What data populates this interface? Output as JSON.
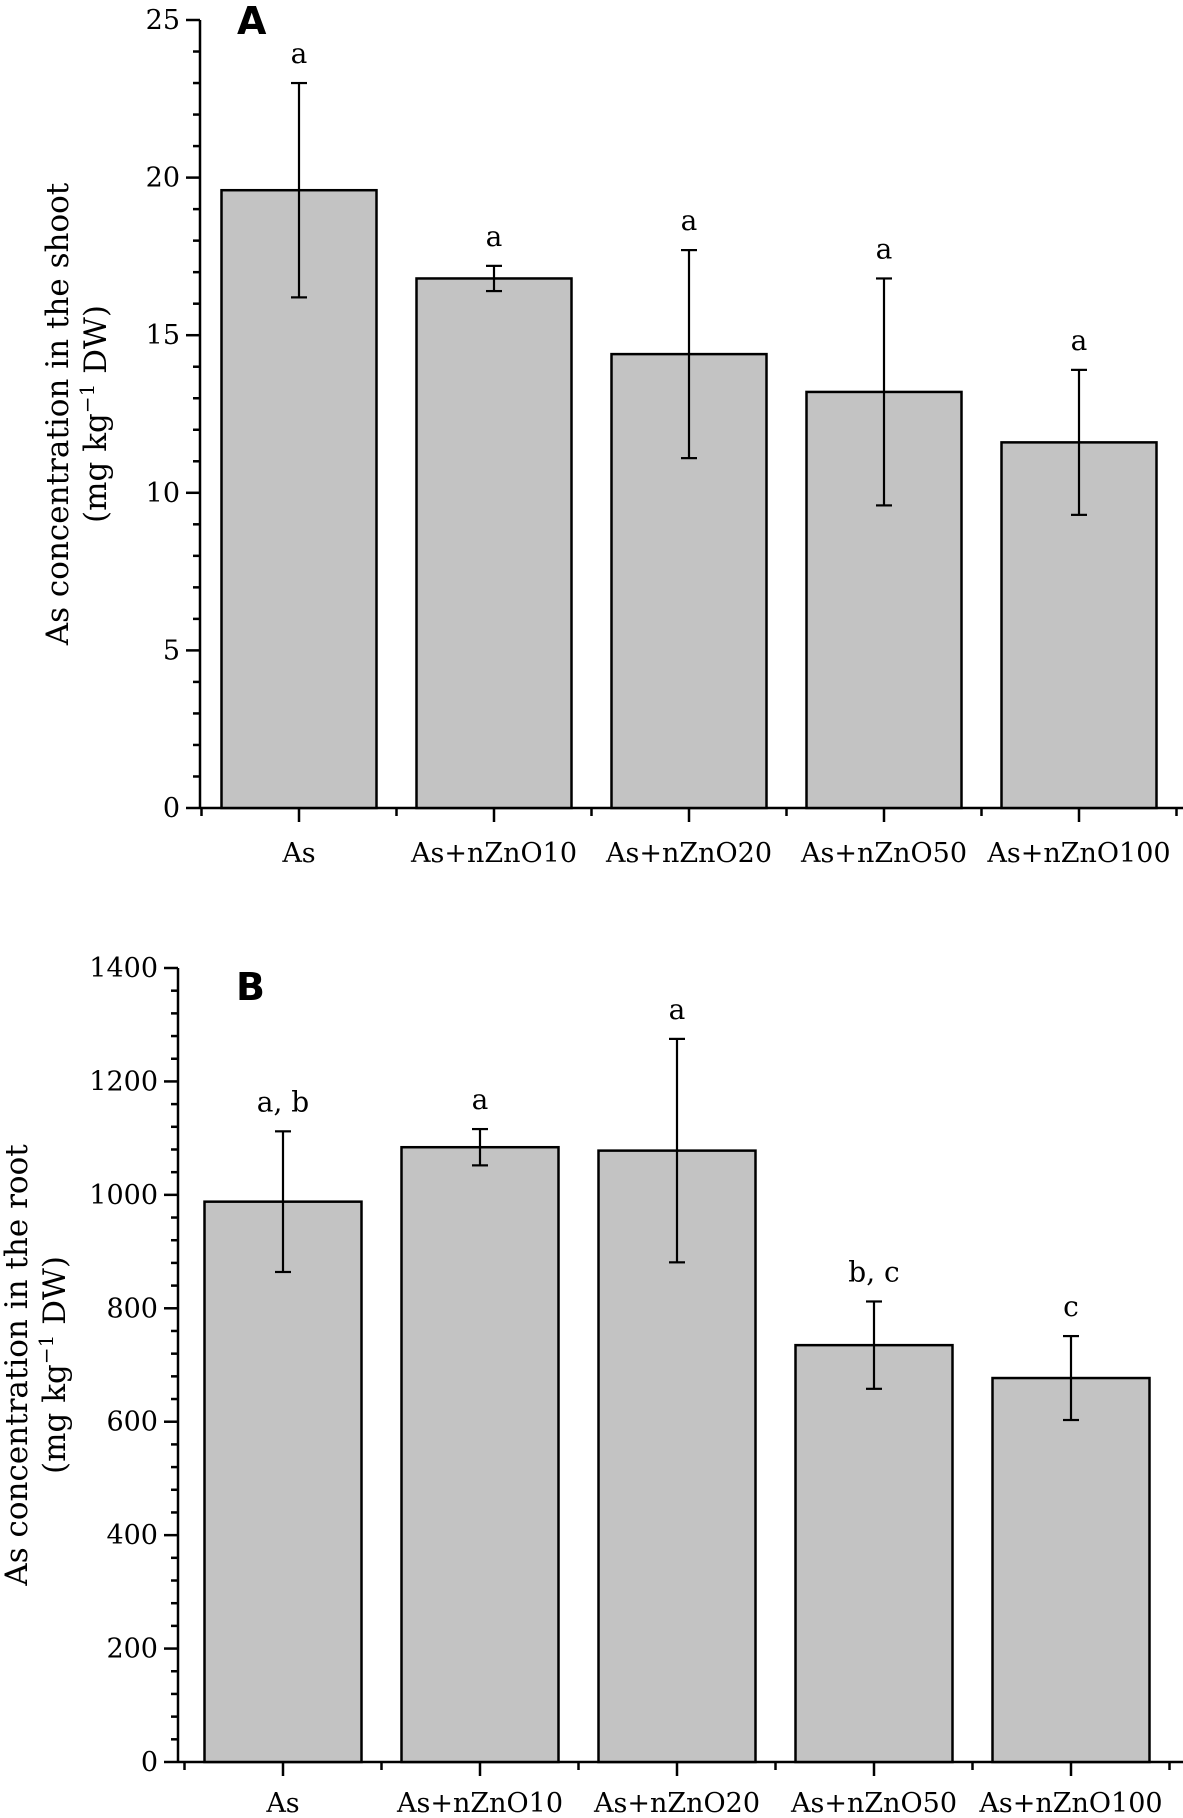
{
  "chart_data": [
    {
      "type": "bar",
      "panel_label": "A",
      "categories": [
        "As",
        "As+nZnO10",
        "As+nZnO20",
        "As+nZnO50",
        "As+nZnO100"
      ],
      "values": [
        19.6,
        16.8,
        14.4,
        13.2,
        11.6
      ],
      "errors": [
        3.4,
        0.4,
        3.3,
        3.6,
        2.3
      ],
      "significance": [
        "a",
        "a",
        "a",
        "a",
        "a"
      ],
      "ylabel_line1": "As concentration in the shoot",
      "ylabel_unit_pre": "(mg kg",
      "ylabel_unit_sup": "−1",
      "ylabel_unit_post": " DW)",
      "ylim": [
        0,
        25
      ],
      "yticks": [
        0,
        5,
        10,
        15,
        20,
        25
      ],
      "minor_step": 1,
      "grid": false
    },
    {
      "type": "bar",
      "panel_label": "B",
      "categories": [
        "As",
        "As+nZnO10",
        "As+nZnO20",
        "As+nZnO50",
        "As+nZnO100"
      ],
      "values": [
        988,
        1084,
        1078,
        735,
        677
      ],
      "errors": [
        124,
        32,
        197,
        77,
        74
      ],
      "significance": [
        "a, b",
        "a",
        "a",
        "b, c",
        "c"
      ],
      "ylabel_line1": "As concentration in the root",
      "ylabel_unit_pre": "(mg kg",
      "ylabel_unit_sup": "−1",
      "ylabel_unit_post": " DW)",
      "ylim": [
        0,
        1400
      ],
      "yticks": [
        0,
        200,
        400,
        600,
        800,
        1000,
        1200,
        1400
      ],
      "minor_step": 40,
      "grid": false
    }
  ]
}
